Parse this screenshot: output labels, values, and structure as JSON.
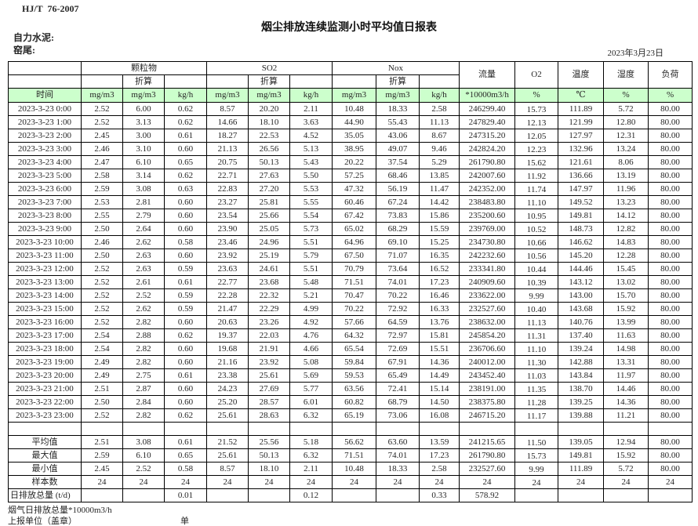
{
  "meta": {
    "standard": "HJ/T  76-2007",
    "title": "烟尘排放连续监测小时平均值日报表",
    "company": "自力水泥:",
    "station": "窑尾:",
    "date": "2023年3月23日"
  },
  "table": {
    "group_headers": {
      "pm": "颗粒物",
      "so2": "SO2",
      "nox": "Nox"
    },
    "converted_label": "折算",
    "single_headers": {
      "flow": "流量",
      "o2": "O2",
      "temp": "温度",
      "humidity": "湿度",
      "load": "负荷"
    },
    "units_row": [
      "时间",
      "mg/m3",
      "mg/m3",
      "kg/h",
      "mg/m3",
      "mg/m3",
      "kg/h",
      "mg/m3",
      "mg/m3",
      "kg/h",
      "*10000m3/h",
      "%",
      "℃",
      "%",
      "%"
    ],
    "rows": [
      [
        "2023-3-23 0:00",
        "2.52",
        "6.00",
        "0.62",
        "8.57",
        "20.20",
        "2.11",
        "10.48",
        "18.33",
        "2.58",
        "246299.40",
        "15.73",
        "111.89",
        "5.72",
        "80.00"
      ],
      [
        "2023-3-23 1:00",
        "2.52",
        "3.13",
        "0.62",
        "14.66",
        "18.10",
        "3.63",
        "44.90",
        "55.43",
        "11.13",
        "247829.40",
        "12.13",
        "121.99",
        "12.80",
        "80.00"
      ],
      [
        "2023-3-23 2:00",
        "2.45",
        "3.00",
        "0.61",
        "18.27",
        "22.53",
        "4.52",
        "35.05",
        "43.06",
        "8.67",
        "247315.20",
        "12.05",
        "127.97",
        "12.31",
        "80.00"
      ],
      [
        "2023-3-23 3:00",
        "2.46",
        "3.10",
        "0.60",
        "21.13",
        "26.56",
        "5.13",
        "38.95",
        "49.07",
        "9.46",
        "242824.20",
        "12.23",
        "132.96",
        "13.24",
        "80.00"
      ],
      [
        "2023-3-23 4:00",
        "2.47",
        "6.10",
        "0.65",
        "20.75",
        "50.13",
        "5.43",
        "20.22",
        "37.54",
        "5.29",
        "261790.80",
        "15.62",
        "121.61",
        "8.06",
        "80.00"
      ],
      [
        "2023-3-23 5:00",
        "2.58",
        "3.14",
        "0.62",
        "22.71",
        "27.63",
        "5.50",
        "57.25",
        "68.46",
        "13.85",
        "242007.60",
        "11.92",
        "136.66",
        "13.19",
        "80.00"
      ],
      [
        "2023-3-23 6:00",
        "2.59",
        "3.08",
        "0.63",
        "22.83",
        "27.20",
        "5.53",
        "47.32",
        "56.19",
        "11.47",
        "242352.00",
        "11.74",
        "147.97",
        "11.96",
        "80.00"
      ],
      [
        "2023-3-23 7:00",
        "2.53",
        "2.81",
        "0.60",
        "23.27",
        "25.81",
        "5.55",
        "60.46",
        "67.24",
        "14.42",
        "238483.80",
        "11.10",
        "149.52",
        "13.23",
        "80.00"
      ],
      [
        "2023-3-23 8:00",
        "2.55",
        "2.79",
        "0.60",
        "23.54",
        "25.66",
        "5.54",
        "67.42",
        "73.83",
        "15.86",
        "235200.60",
        "10.95",
        "149.81",
        "14.12",
        "80.00"
      ],
      [
        "2023-3-23 9:00",
        "2.50",
        "2.64",
        "0.60",
        "23.90",
        "25.05",
        "5.73",
        "65.02",
        "68.29",
        "15.59",
        "239769.00",
        "10.52",
        "148.73",
        "12.82",
        "80.00"
      ],
      [
        "2023-3-23 10:00",
        "2.46",
        "2.62",
        "0.58",
        "23.46",
        "24.96",
        "5.51",
        "64.96",
        "69.10",
        "15.25",
        "234730.80",
        "10.66",
        "146.62",
        "14.83",
        "80.00"
      ],
      [
        "2023-3-23 11:00",
        "2.50",
        "2.63",
        "0.60",
        "23.92",
        "25.19",
        "5.79",
        "67.50",
        "71.07",
        "16.35",
        "242232.60",
        "10.56",
        "145.20",
        "12.28",
        "80.00"
      ],
      [
        "2023-3-23 12:00",
        "2.52",
        "2.63",
        "0.59",
        "23.63",
        "24.61",
        "5.51",
        "70.79",
        "73.64",
        "16.52",
        "233341.80",
        "10.44",
        "144.46",
        "15.45",
        "80.00"
      ],
      [
        "2023-3-23 13:00",
        "2.52",
        "2.61",
        "0.61",
        "22.77",
        "23.68",
        "5.48",
        "71.51",
        "74.01",
        "17.23",
        "240909.60",
        "10.39",
        "143.12",
        "13.02",
        "80.00"
      ],
      [
        "2023-3-23 14:00",
        "2.52",
        "2.52",
        "0.59",
        "22.28",
        "22.32",
        "5.21",
        "70.47",
        "70.22",
        "16.46",
        "233622.00",
        "9.99",
        "143.00",
        "15.70",
        "80.00"
      ],
      [
        "2023-3-23 15:00",
        "2.52",
        "2.62",
        "0.59",
        "21.47",
        "22.29",
        "4.99",
        "70.22",
        "72.92",
        "16.33",
        "232527.60",
        "10.40",
        "143.68",
        "15.92",
        "80.00"
      ],
      [
        "2023-3-23 16:00",
        "2.52",
        "2.82",
        "0.60",
        "20.63",
        "23.26",
        "4.92",
        "57.66",
        "64.59",
        "13.76",
        "238632.00",
        "11.13",
        "140.76",
        "13.99",
        "80.00"
      ],
      [
        "2023-3-23 17:00",
        "2.54",
        "2.88",
        "0.62",
        "19.37",
        "22.03",
        "4.76",
        "64.32",
        "72.97",
        "15.81",
        "245854.20",
        "11.31",
        "137.40",
        "11.63",
        "80.00"
      ],
      [
        "2023-3-23 18:00",
        "2.54",
        "2.82",
        "0.60",
        "19.68",
        "21.91",
        "4.66",
        "65.54",
        "72.69",
        "15.51",
        "236706.60",
        "11.10",
        "139.24",
        "14.98",
        "80.00"
      ],
      [
        "2023-3-23 19:00",
        "2.49",
        "2.82",
        "0.60",
        "21.16",
        "23.92",
        "5.08",
        "59.84",
        "67.91",
        "14.36",
        "240012.00",
        "11.30",
        "142.88",
        "13.31",
        "80.00"
      ],
      [
        "2023-3-23 20:00",
        "2.49",
        "2.75",
        "0.61",
        "23.38",
        "25.61",
        "5.69",
        "59.53",
        "65.49",
        "14.49",
        "243452.40",
        "11.03",
        "143.84",
        "11.97",
        "80.00"
      ],
      [
        "2023-3-23 21:00",
        "2.51",
        "2.87",
        "0.60",
        "24.23",
        "27.69",
        "5.77",
        "63.56",
        "72.41",
        "15.14",
        "238191.00",
        "11.35",
        "138.70",
        "14.46",
        "80.00"
      ],
      [
        "2023-3-23 22:00",
        "2.50",
        "2.84",
        "0.60",
        "25.20",
        "28.57",
        "6.01",
        "60.82",
        "68.79",
        "14.50",
        "238375.80",
        "11.28",
        "139.25",
        "14.36",
        "80.00"
      ],
      [
        "2023-3-23 23:00",
        "2.52",
        "2.82",
        "0.62",
        "25.61",
        "28.63",
        "6.32",
        "65.19",
        "73.06",
        "16.08",
        "246715.20",
        "11.17",
        "139.88",
        "11.21",
        "80.00"
      ]
    ],
    "spacer_row": [
      "",
      "",
      "",
      "",
      "",
      "",
      "",
      "",
      "",
      "",
      "",
      "",
      "",
      "",
      ""
    ],
    "summary_rows": [
      [
        "平均值",
        "2.51",
        "3.08",
        "0.61",
        "21.52",
        "25.56",
        "5.18",
        "56.62",
        "63.60",
        "13.59",
        "241215.65",
        "11.50",
        "139.05",
        "12.94",
        "80.00"
      ],
      [
        "最大值",
        "2.59",
        "6.10",
        "0.65",
        "25.61",
        "50.13",
        "6.32",
        "71.51",
        "74.01",
        "17.23",
        "261790.80",
        "15.73",
        "149.81",
        "15.92",
        "80.00"
      ],
      [
        "最小值",
        "2.45",
        "2.52",
        "0.58",
        "8.57",
        "18.10",
        "2.11",
        "10.48",
        "18.33",
        "2.58",
        "232527.60",
        "9.99",
        "111.89",
        "5.72",
        "80.00"
      ],
      [
        "样本数",
        "24",
        "24",
        "24",
        "24",
        "24",
        "24",
        "24",
        "24",
        "24",
        "24",
        "24",
        "24",
        "24",
        "24"
      ],
      [
        "日排放总量 (t/d)",
        "",
        "",
        "0.01",
        "",
        "",
        "0.12",
        "",
        "",
        "0.33",
        "578.92",
        "",
        "",
        "",
        ""
      ]
    ]
  },
  "footer": {
    "line1": "烟气日排放总量*10000m3/h",
    "report_unit_label": "上报单位（盖章）",
    "unit_label": "单位"
  },
  "colors": {
    "header_fill": "#ccffcc",
    "border": "#000000"
  }
}
